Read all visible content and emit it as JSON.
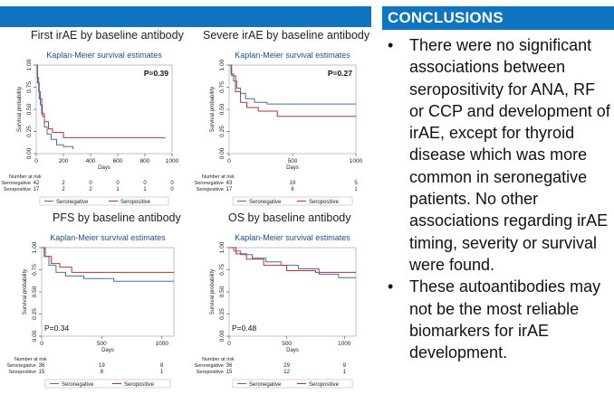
{
  "conclusions": {
    "title": "CONCLUSIONS",
    "bullets": [
      "There were no significant associations between seropositivity for ANA, RF or CCP and development of irAE, except for thyroid disease which was more common in seronegative patients. No other associations regarding irAE timing, severity or survival were found.",
      "These autoantibodies may not be the most reliable biomarkers for irAE development."
    ]
  },
  "colors": {
    "seronegative": "#4a6fa5",
    "seropositive": "#b8323a",
    "header_blue": "#0f75c0"
  },
  "chart_data": [
    {
      "type": "line",
      "panel_title": "First irAE by baseline antibody",
      "title": "Kaplan-Meier survival estimates",
      "xlabel": "Days",
      "ylabel": "Survival probability",
      "xlim": [
        0,
        1000
      ],
      "ylim": [
        0,
        1
      ],
      "xticks": [
        0,
        200,
        400,
        600,
        800,
        1000
      ],
      "yticks": [
        "0.00",
        "0.25",
        "0.50",
        "0.75",
        "1.00"
      ],
      "p_value": "P=0.39",
      "risk_header": "Number at risk",
      "risk_times": [
        0,
        200,
        400,
        600,
        800,
        1000
      ],
      "risk_table": [
        {
          "name": "Seronegative",
          "counts": [
            "42",
            "2",
            "0",
            "0",
            "0",
            "0"
          ]
        },
        {
          "name": "Seropositive",
          "counts": [
            "17",
            "2",
            "2",
            "1",
            "1",
            "0"
          ]
        }
      ],
      "series": [
        {
          "name": "Seronegative",
          "points": [
            [
              0,
              1
            ],
            [
              8,
              0.86
            ],
            [
              18,
              0.7
            ],
            [
              30,
              0.55
            ],
            [
              45,
              0.42
            ],
            [
              60,
              0.3
            ],
            [
              80,
              0.22
            ],
            [
              110,
              0.16
            ],
            [
              150,
              0.1
            ],
            [
              200,
              0.08
            ],
            [
              270,
              0.05
            ]
          ]
        },
        {
          "name": "Seropositive",
          "points": [
            [
              0,
              1
            ],
            [
              10,
              0.8
            ],
            [
              22,
              0.62
            ],
            [
              40,
              0.45
            ],
            [
              60,
              0.36
            ],
            [
              90,
              0.28
            ],
            [
              120,
              0.24
            ],
            [
              200,
              0.18
            ],
            [
              950,
              0.18
            ]
          ]
        }
      ],
      "legend": [
        "Seronegative",
        "Seropositive"
      ]
    },
    {
      "type": "line",
      "panel_title": "Severe irAE by baseline antibody",
      "title": "Kaplan-Meier survival estimates",
      "xlabel": "Days",
      "ylabel": "Survival probability",
      "xlim": [
        0,
        1000
      ],
      "ylim": [
        0,
        1
      ],
      "xticks": [
        0,
        500,
        1000
      ],
      "yticks": [
        "0.00",
        "0.25",
        "0.50",
        "0.75",
        "1.00"
      ],
      "p_value": "P=0.27",
      "risk_header": "Number at risk",
      "risk_times": [
        0,
        500,
        1000
      ],
      "risk_table": [
        {
          "name": "Seronegative",
          "counts": [
            "43",
            "19",
            "5"
          ]
        },
        {
          "name": "Seropositive",
          "counts": [
            "17",
            "6",
            "1"
          ]
        }
      ],
      "series": [
        {
          "name": "Seronegative",
          "points": [
            [
              0,
              1
            ],
            [
              15,
              0.9
            ],
            [
              35,
              0.82
            ],
            [
              60,
              0.74
            ],
            [
              90,
              0.68
            ],
            [
              130,
              0.62
            ],
            [
              200,
              0.58
            ],
            [
              300,
              0.56
            ],
            [
              700,
              0.56
            ],
            [
              1000,
              0.56
            ]
          ]
        },
        {
          "name": "Seropositive",
          "points": [
            [
              0,
              1
            ],
            [
              20,
              0.88
            ],
            [
              50,
              0.7
            ],
            [
              90,
              0.58
            ],
            [
              140,
              0.52
            ],
            [
              230,
              0.48
            ],
            [
              380,
              0.42
            ],
            [
              1000,
              0.42
            ]
          ]
        }
      ],
      "legend": [
        "Seronegative",
        "Seropositive"
      ]
    },
    {
      "type": "line",
      "panel_title": "PFS by baseline antibody",
      "title": "Kaplan-Meier survival estimates",
      "xlabel": "Days",
      "ylabel": "Survival probability",
      "xlim": [
        0,
        1100
      ],
      "ylim": [
        0,
        1
      ],
      "xticks": [
        0,
        500,
        1000
      ],
      "yticks": [
        "0.00",
        "0.25",
        "0.50",
        "0.75",
        "1.00"
      ],
      "p_value": "P=0.34",
      "risk_header": "Number at risk",
      "risk_times": [
        0,
        500,
        1000
      ],
      "risk_table": [
        {
          "name": "Seronegative",
          "counts": [
            "36",
            "19",
            "8"
          ]
        },
        {
          "name": "Seropositive",
          "counts": [
            "15",
            "8",
            "1"
          ]
        }
      ],
      "series": [
        {
          "name": "Seronegative",
          "points": [
            [
              0,
              1
            ],
            [
              20,
              0.9
            ],
            [
              60,
              0.8
            ],
            [
              120,
              0.72
            ],
            [
              200,
              0.68
            ],
            [
              350,
              0.65
            ],
            [
              600,
              0.62
            ],
            [
              1100,
              0.62
            ]
          ]
        },
        {
          "name": "Seropositive",
          "points": [
            [
              0,
              1
            ],
            [
              30,
              0.9
            ],
            [
              80,
              0.82
            ],
            [
              150,
              0.78
            ],
            [
              250,
              0.72
            ],
            [
              1100,
              0.72
            ]
          ]
        }
      ],
      "legend": [
        "Seronegative",
        "Seropositive"
      ]
    },
    {
      "type": "line",
      "panel_title": "OS by baseline antibody",
      "title": "Kaplan-Meier survival estimates",
      "xlabel": "Days",
      "ylabel": "Survival probability",
      "xlim": [
        0,
        1100
      ],
      "ylim": [
        0,
        1
      ],
      "xticks": [
        0,
        500,
        1000
      ],
      "yticks": [
        "0.00",
        "0.25",
        "0.50",
        "0.75",
        "1.00"
      ],
      "p_value": "P=0.48",
      "risk_header": "Number at risk",
      "risk_times": [
        0,
        500,
        1000
      ],
      "risk_table": [
        {
          "name": "Seronegative",
          "counts": [
            "36",
            "29",
            "9"
          ]
        },
        {
          "name": "Seropositive",
          "counts": [
            "15",
            "12",
            "1"
          ]
        }
      ],
      "series": [
        {
          "name": "Seronegative",
          "points": [
            [
              0,
              1
            ],
            [
              40,
              0.96
            ],
            [
              100,
              0.92
            ],
            [
              200,
              0.88
            ],
            [
              320,
              0.84
            ],
            [
              450,
              0.8
            ],
            [
              600,
              0.76
            ],
            [
              780,
              0.7
            ],
            [
              950,
              0.66
            ],
            [
              1100,
              0.66
            ]
          ]
        },
        {
          "name": "Seropositive",
          "points": [
            [
              0,
              1
            ],
            [
              60,
              0.93
            ],
            [
              150,
              0.87
            ],
            [
              300,
              0.8
            ],
            [
              500,
              0.74
            ],
            [
              750,
              0.72
            ],
            [
              1100,
              0.72
            ]
          ]
        }
      ],
      "legend": [
        "Seronegative",
        "Seropositive"
      ]
    }
  ]
}
